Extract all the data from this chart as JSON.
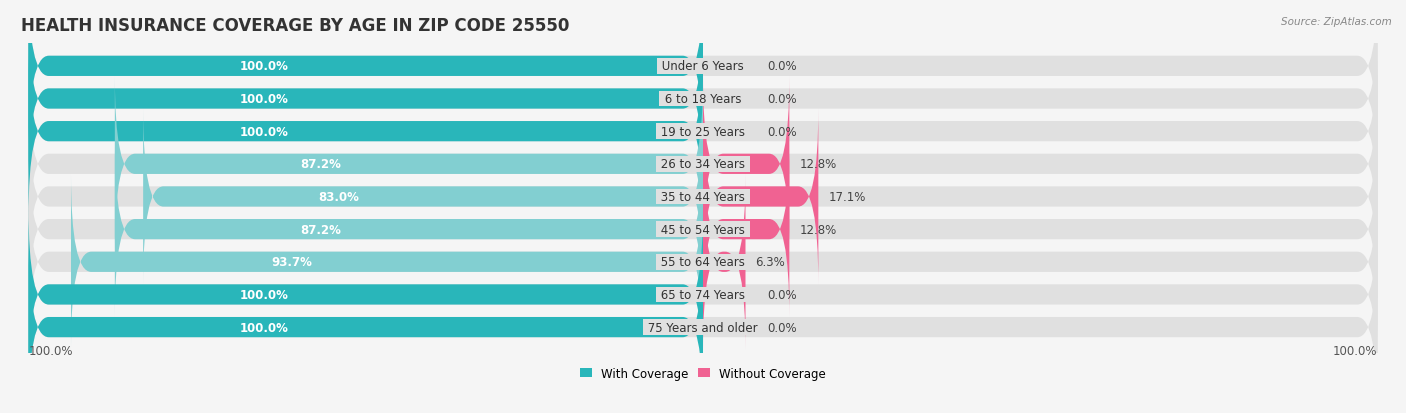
{
  "title": "HEALTH INSURANCE COVERAGE BY AGE IN ZIP CODE 25550",
  "source": "Source: ZipAtlas.com",
  "categories": [
    "Under 6 Years",
    "6 to 18 Years",
    "19 to 25 Years",
    "26 to 34 Years",
    "35 to 44 Years",
    "45 to 54 Years",
    "55 to 64 Years",
    "65 to 74 Years",
    "75 Years and older"
  ],
  "with_coverage": [
    100.0,
    100.0,
    100.0,
    87.2,
    83.0,
    87.2,
    93.7,
    100.0,
    100.0
  ],
  "without_coverage": [
    0.0,
    0.0,
    0.0,
    12.8,
    17.1,
    12.8,
    6.3,
    0.0,
    0.0
  ],
  "color_with_full": "#29b6ba",
  "color_with_partial": "#82cfd1",
  "color_without_large": "#f06292",
  "color_without_small": "#f8bbd0",
  "bg_color": "#f5f5f5",
  "bar_bg_color": "#e0e0e0",
  "title_fontsize": 12,
  "label_fontsize": 8.5,
  "source_fontsize": 7.5,
  "legend_fontsize": 8.5,
  "x_axis_label": "100.0%"
}
